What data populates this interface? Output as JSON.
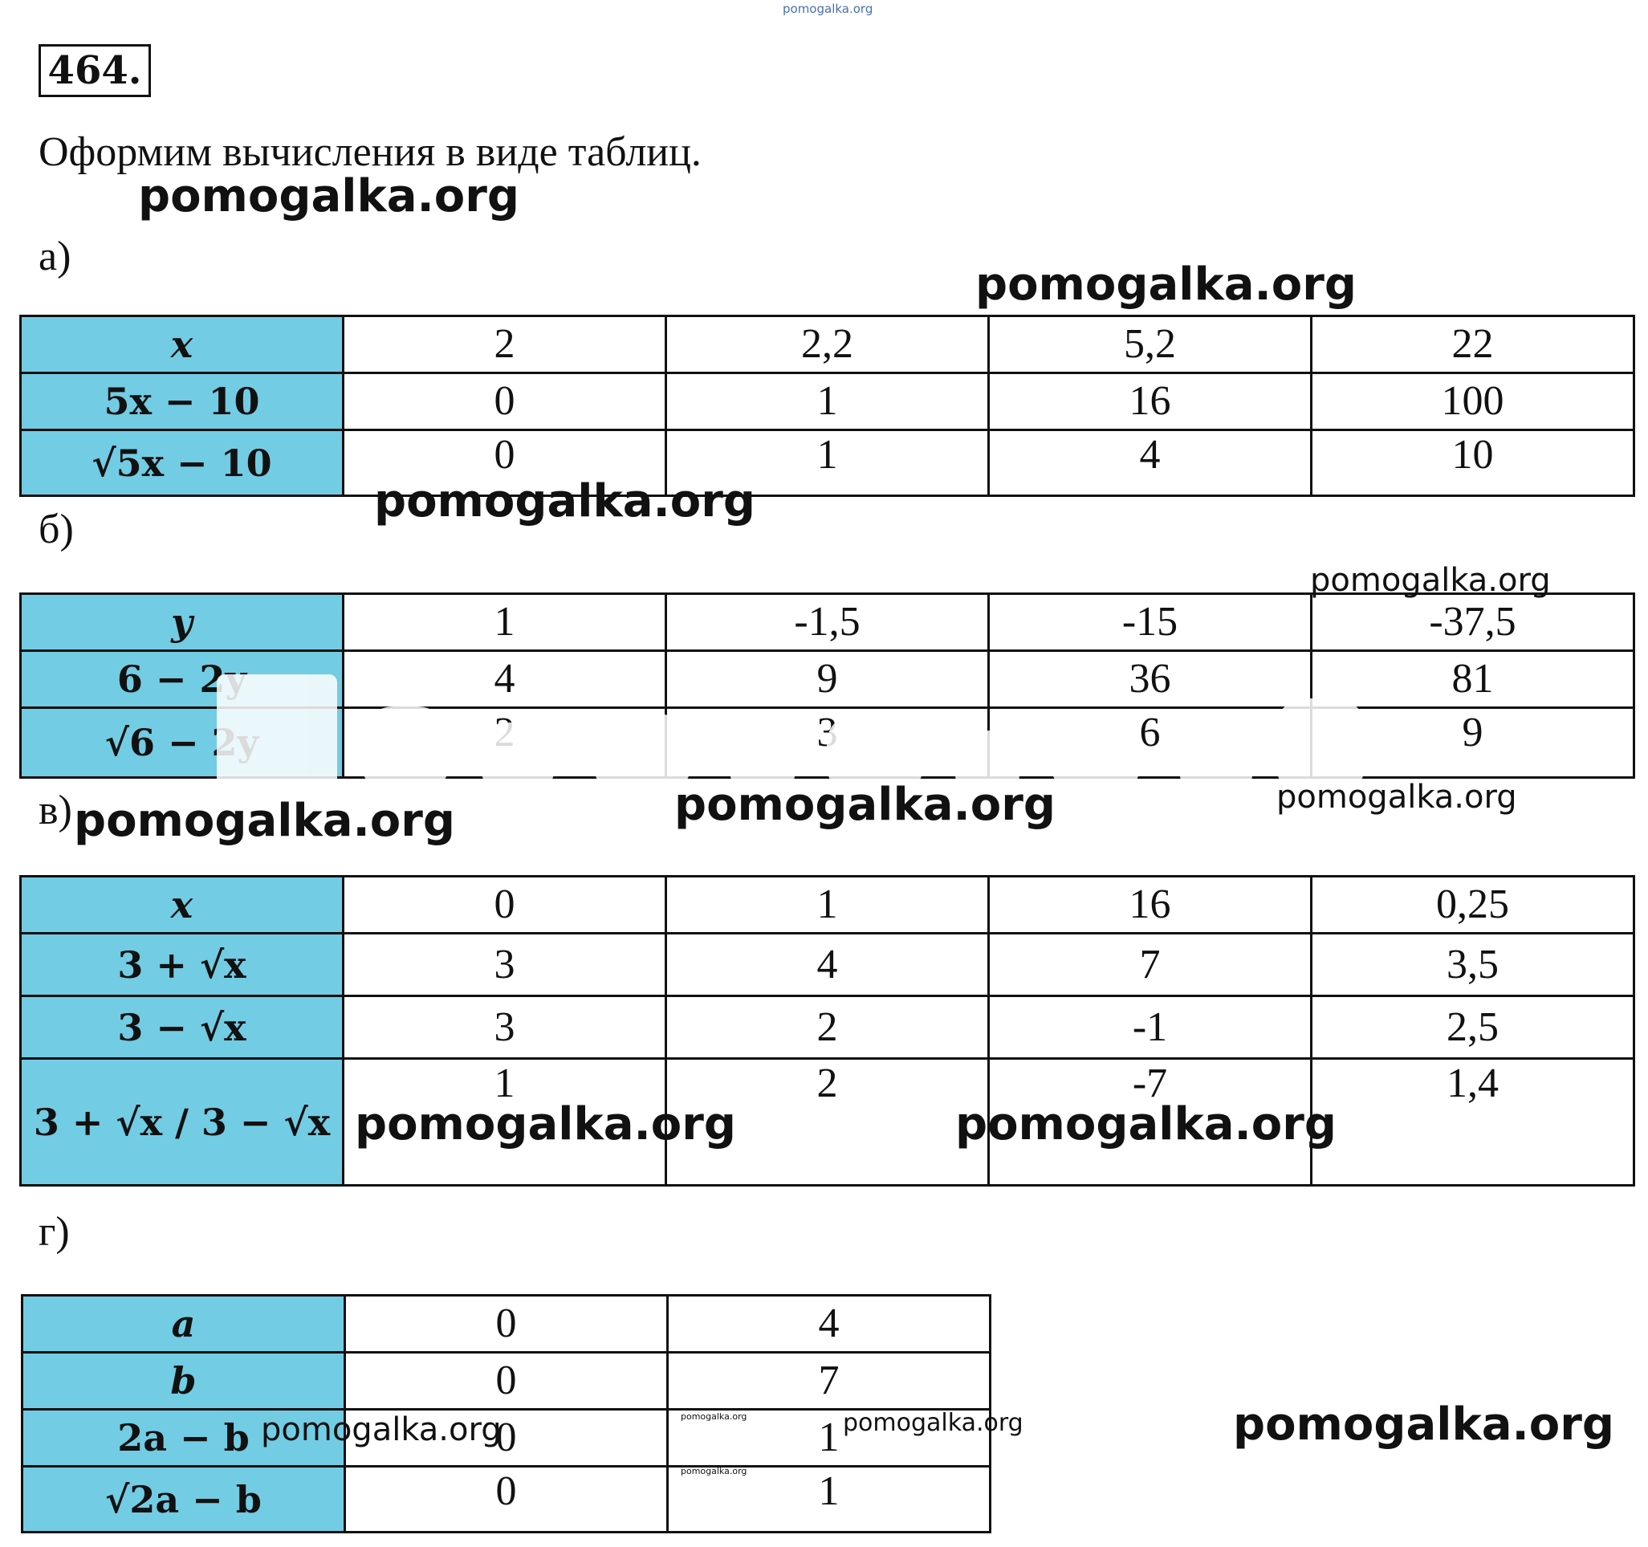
{
  "top_watermark": "pomogalka.org",
  "task_number": "464.",
  "intro": "Оформим вычисления в виде таблиц.",
  "watermark": "pomogalka.org",
  "tables": [
    {
      "label": "а)",
      "headers": [
        "x",
        "5x − 10",
        "√5x − 10"
      ],
      "rows": [
        [
          "2",
          "2,2",
          "5,2",
          "22"
        ],
        [
          "0",
          "1",
          "16",
          "100"
        ],
        [
          "0",
          "1",
          "4",
          "10"
        ]
      ]
    },
    {
      "label": "б)",
      "headers": [
        "y",
        "6 − 2y",
        "√6 − 2y"
      ],
      "rows": [
        [
          "1",
          "-1,5",
          "-15",
          "-37,5"
        ],
        [
          "4",
          "9",
          "36",
          "81"
        ],
        [
          "2",
          "3",
          "6",
          "9"
        ]
      ]
    },
    {
      "label": "в)",
      "headers": [
        "x",
        "3 + √x",
        "3 − √x",
        "3 + √x / 3 − √x"
      ],
      "rows": [
        [
          "0",
          "1",
          "16",
          "0,25"
        ],
        [
          "3",
          "4",
          "7",
          "3,5"
        ],
        [
          "3",
          "2",
          "-1",
          "2,5"
        ],
        [
          "1",
          "2",
          "-7",
          "1,4"
        ]
      ]
    },
    {
      "label": "г)",
      "headers": [
        "a",
        "b",
        "2a − b",
        "√2a − b"
      ],
      "rows": [
        [
          "0",
          "4"
        ],
        [
          "0",
          "7"
        ],
        [
          "0",
          "1"
        ],
        [
          "0",
          "1"
        ]
      ]
    }
  ]
}
